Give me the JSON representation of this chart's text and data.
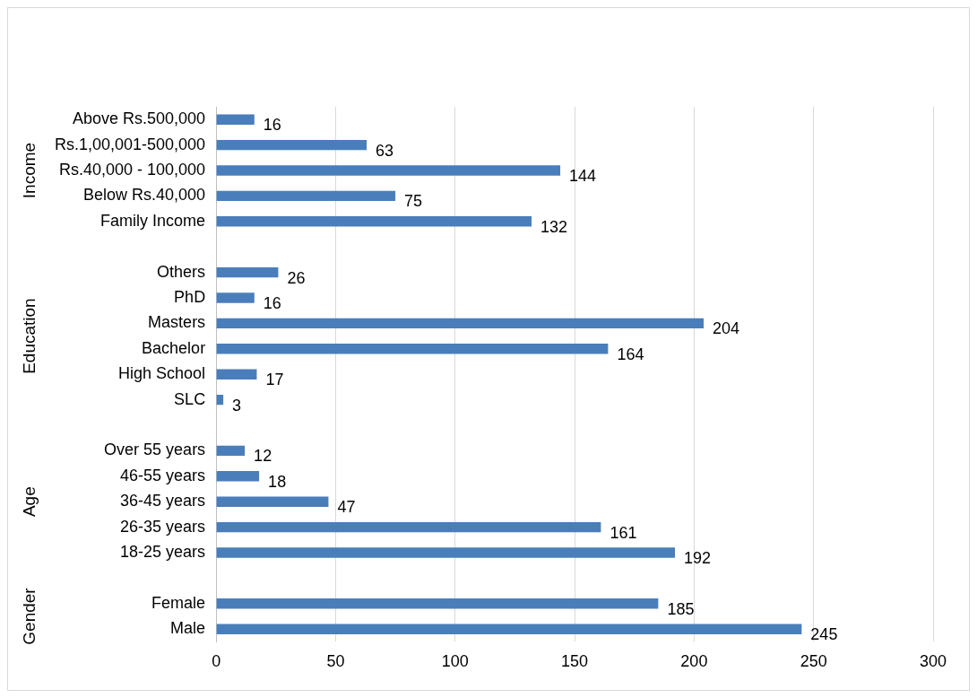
{
  "chart_data": {
    "type": "bar",
    "orientation": "horizontal",
    "categories": [
      "Above Rs.500,000",
      "Rs.1,00,001-500,000",
      "Rs.40,000 - 100,000",
      "Below Rs.40,000",
      "Family Income",
      null,
      "Others",
      "PhD",
      "Masters",
      "Bachelor",
      "High School",
      "SLC",
      null,
      "Over 55 years",
      "46-55 years",
      "36-45 years",
      "26-35 years",
      "18-25 years",
      null,
      "Female",
      "Male"
    ],
    "values": [
      16,
      63,
      144,
      75,
      132,
      null,
      26,
      16,
      204,
      164,
      17,
      3,
      null,
      12,
      18,
      47,
      161,
      192,
      null,
      185,
      245
    ],
    "color": "#4a7ebb",
    "xlim": [
      0,
      300
    ],
    "xticks": [
      0,
      50,
      100,
      150,
      200,
      250,
      300
    ],
    "grid": "x",
    "data_labels": true,
    "annotations": [
      "Income",
      "Education",
      "Age",
      "Gender"
    ]
  }
}
